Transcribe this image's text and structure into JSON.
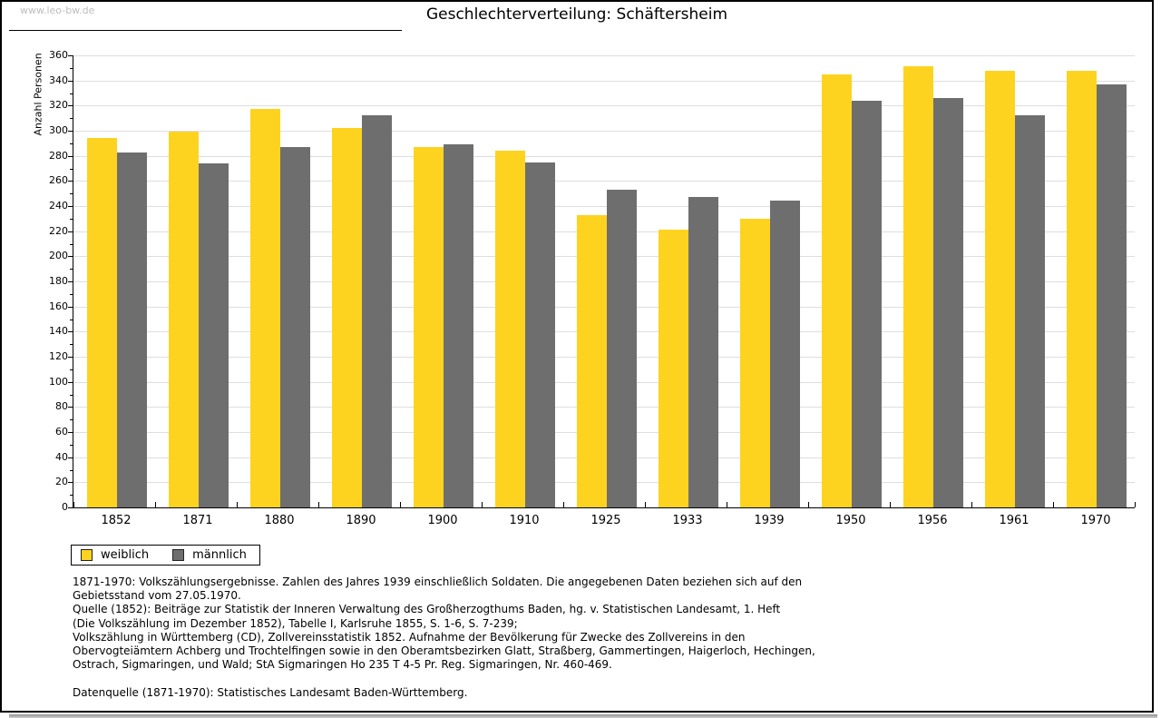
{
  "watermark": "www.leo-bw.de",
  "title": "Geschlechterverteilung: Schäftersheim",
  "chart_data": {
    "type": "bar",
    "title": "Geschlechterverteilung: Schäftersheim",
    "categories": [
      "1852",
      "1871",
      "1880",
      "1890",
      "1900",
      "1910",
      "1925",
      "1933",
      "1939",
      "1950",
      "1956",
      "1961",
      "1970"
    ],
    "series": [
      {
        "name": "weiblich",
        "color": "#fdd320",
        "values": [
          294,
          299,
          317,
          302,
          287,
          284,
          233,
          221,
          230,
          345,
          351,
          348,
          348
        ]
      },
      {
        "name": "männlich",
        "color": "#6e6e6e",
        "values": [
          283,
          274,
          287,
          312,
          289,
          275,
          253,
          247,
          244,
          324,
          326,
          312,
          337
        ]
      }
    ],
    "xlabel": "",
    "ylabel": "Anzahl Personen",
    "ylim": [
      0,
      360
    ],
    "ytick_step": 20,
    "grid": true,
    "legend_position": "bottom-left"
  },
  "footer": {
    "lines": [
      "1871-1970: Volkszählungsergebnisse. Zahlen des Jahres 1939 einschließlich Soldaten. Die angegebenen Daten beziehen sich auf den",
      "Gebietsstand vom 27.05.1970.",
      "Quelle (1852): Beiträge zur Statistik der Inneren Verwaltung des Großherzogthums Baden, hg. v. Statistischen Landesamt, 1. Heft",
      "(Die Volkszählung im Dezember 1852), Tabelle I, Karlsruhe 1855, S. 1-6, S. 7-239;",
      "Volkszählung in Württemberg (CD), Zollvereinsstatistik 1852. Aufnahme der Bevölkerung für Zwecke des Zollvereins in den",
      "Obervogteiämtern Achberg und Trochtelfingen sowie in den Oberamtsbezirken Glatt, Straßberg, Gammertingen, Haigerloch, Hechingen,",
      "Ostrach, Sigmaringen, und Wald; StA Sigmaringen Ho 235 T 4-5 Pr. Reg. Sigmaringen, Nr. 460-469.",
      "",
      "Datenquelle (1871-1970): Statistisches Landesamt Baden-Württemberg."
    ]
  }
}
